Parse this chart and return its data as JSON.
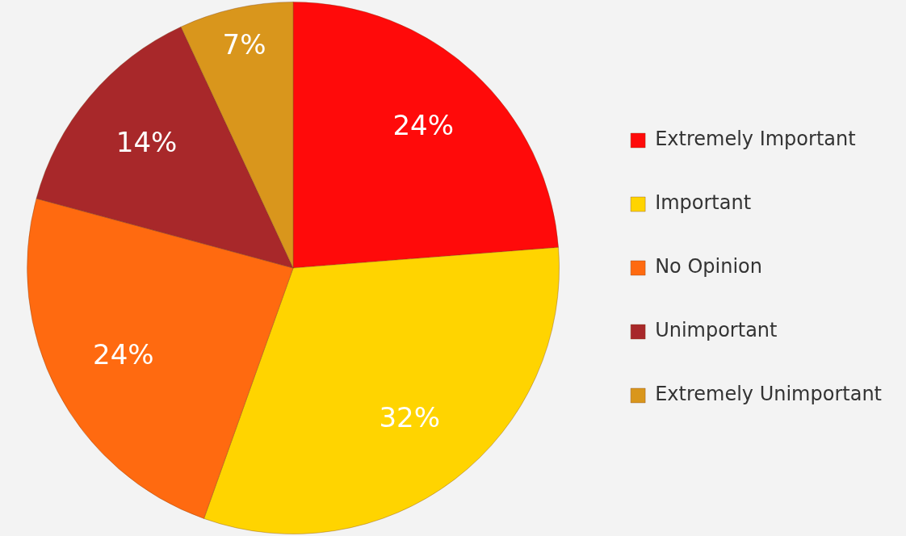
{
  "chart_data": {
    "type": "pie",
    "categories": [
      "Extremely Important",
      "Important",
      "No Opinion",
      "Unimportant",
      "Extremely Unimportant"
    ],
    "values": [
      24,
      32,
      24,
      14,
      7
    ],
    "colors": [
      "#ff0a0a",
      "#ffd400",
      "#ff6a10",
      "#a8282a",
      "#d9961c"
    ],
    "value_labels": [
      "24%",
      "32%",
      "24%",
      "14%",
      "7%"
    ],
    "legend": "right"
  }
}
